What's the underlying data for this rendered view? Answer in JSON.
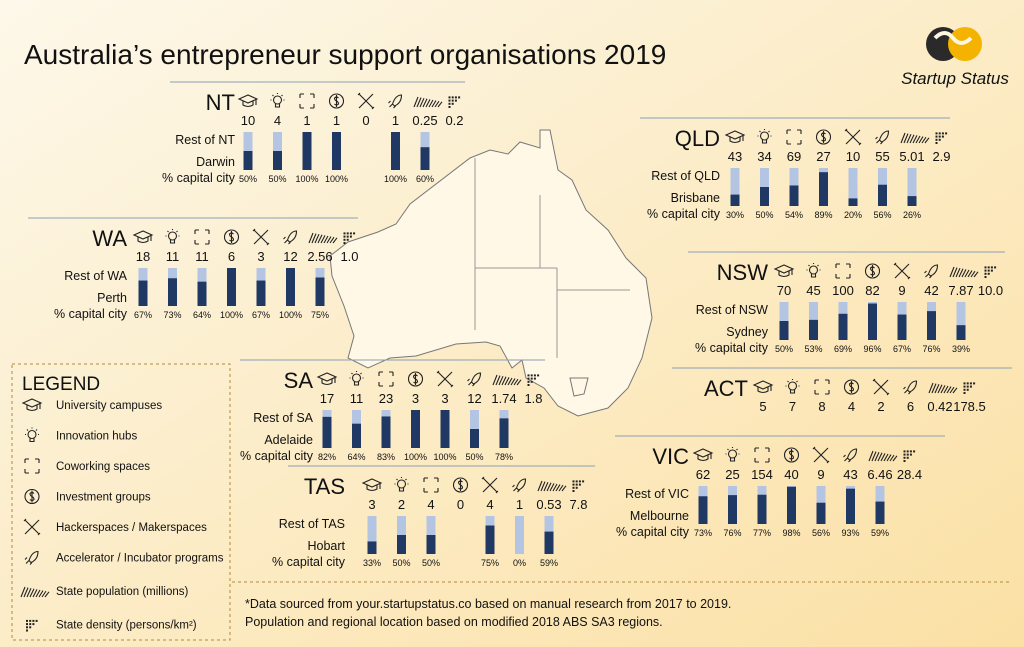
{
  "title": "Australia’s entrepreneur support organisations 2019",
  "brand": "Startup Status",
  "states": [
    {
      "name": "NT",
      "counts": [
        "10",
        "4",
        "1",
        "1",
        "0",
        "1",
        "0.25",
        "0.2"
      ],
      "pct": [
        50,
        50,
        100,
        100,
        null,
        100,
        60
      ],
      "pct_labels": [
        "50%",
        "50%",
        "100%",
        "100%",
        null,
        "100%",
        "60%"
      ],
      "rest_label": "Rest of NT",
      "capital_label": "Darwin",
      "pct_caption": "% capital city"
    },
    {
      "name": "QLD",
      "counts": [
        "43",
        "34",
        "69",
        "27",
        "10",
        "55",
        "5.01",
        "2.9"
      ],
      "pct": [
        30,
        50,
        54,
        89,
        20,
        56,
        26
      ],
      "pct_labels": [
        "30%",
        "50%",
        "54%",
        "89%",
        "20%",
        "56%",
        "26%"
      ],
      "rest_label": "Rest of QLD",
      "capital_label": "Brisbane",
      "pct_caption": "% capital city"
    },
    {
      "name": "WA",
      "counts": [
        "18",
        "11",
        "11",
        "6",
        "3",
        "12",
        "2.56",
        "1.0"
      ],
      "pct": [
        67,
        73,
        64,
        100,
        67,
        100,
        75
      ],
      "pct_labels": [
        "67%",
        "73%",
        "64%",
        "100%",
        "67%",
        "100%",
        "75%"
      ],
      "rest_label": "Rest of WA",
      "capital_label": "Perth",
      "pct_caption": "% capital city"
    },
    {
      "name": "NSW",
      "counts": [
        "70",
        "45",
        "100",
        "82",
        "9",
        "42",
        "7.87",
        "10.0"
      ],
      "pct": [
        50,
        53,
        69,
        96,
        67,
        76,
        39
      ],
      "pct_labels": [
        "50%",
        "53%",
        "69%",
        "96%",
        "67%",
        "76%",
        "39%"
      ],
      "rest_label": "Rest of NSW",
      "capital_label": "Sydney",
      "pct_caption": "% capital city"
    },
    {
      "name": "ACT",
      "counts": [
        "5",
        "7",
        "8",
        "4",
        "2",
        "6",
        "0.42",
        "178.5"
      ]
    },
    {
      "name": "SA",
      "counts": [
        "17",
        "11",
        "23",
        "3",
        "3",
        "12",
        "1.74",
        "1.8"
      ],
      "pct": [
        82,
        64,
        83,
        100,
        100,
        50,
        78
      ],
      "pct_labels": [
        "82%",
        "64%",
        "83%",
        "100%",
        "100%",
        "50%",
        "78%"
      ],
      "rest_label": "Rest of SA",
      "capital_label": "Adelaide",
      "pct_caption": "% capital city"
    },
    {
      "name": "VIC",
      "counts": [
        "62",
        "25",
        "154",
        "40",
        "9",
        "43",
        "6.46",
        "28.4"
      ],
      "pct": [
        73,
        76,
        77,
        98,
        56,
        93,
        59
      ],
      "pct_labels": [
        "73%",
        "76%",
        "77%",
        "98%",
        "56%",
        "93%",
        "59%"
      ],
      "rest_label": "Rest of VIC",
      "capital_label": "Melbourne",
      "pct_caption": "% capital city"
    },
    {
      "name": "TAS",
      "counts": [
        "3",
        "2",
        "4",
        "0",
        "4",
        "1",
        "0.53",
        "7.8"
      ],
      "pct": [
        33,
        50,
        50,
        null,
        75,
        0,
        59
      ],
      "pct_labels": [
        "33%",
        "50%",
        "50%",
        null,
        "75%",
        "0%",
        "59%"
      ],
      "rest_label": "Rest of TAS",
      "capital_label": "Hobart",
      "pct_caption": "% capital city"
    }
  ],
  "legend": {
    "title": "LEGEND",
    "items": [
      "University campuses",
      "Innovation hubs",
      "Coworking spaces",
      "Investment groups",
      "Hackerspaces / Makerspaces",
      "Accelerator / Incubator programs",
      "State population (millions)",
      "State density (persons/km²)"
    ]
  },
  "footnote": [
    "*Data sourced from your.startupstatus.co based on manual research from 2017 to 2019.",
    "Population and regional location based on modified 2018 ABS SA3 regions."
  ]
}
